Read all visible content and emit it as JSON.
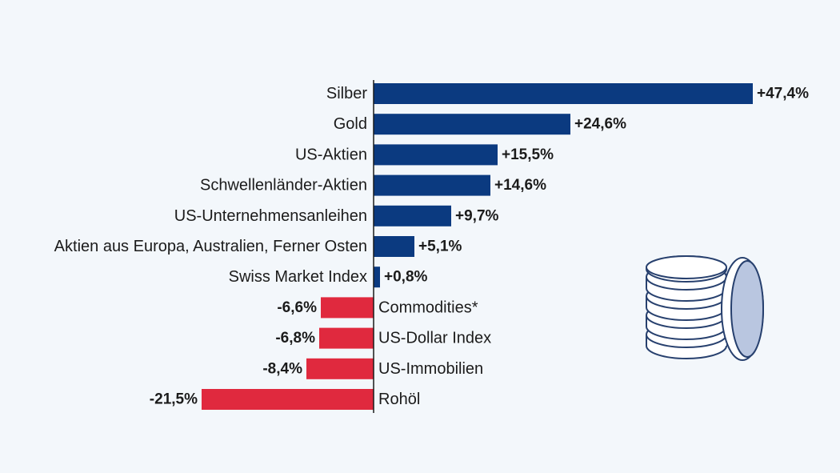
{
  "chart_data": {
    "type": "bar",
    "orientation": "horizontal",
    "categories": [
      "Silber",
      "Gold",
      "US-Aktien",
      "Schwellenländer-Aktien",
      "US-Unternehmensanleihen",
      "Aktien aus Europa, Australien, Ferner Osten",
      "Swiss Market Index",
      "Commodities*",
      "US-Dollar Index",
      "US-Immobilien",
      "Rohöl"
    ],
    "values": [
      47.4,
      24.6,
      15.5,
      14.6,
      9.7,
      5.1,
      0.8,
      -6.6,
      -6.8,
      -8.4,
      -21.5
    ],
    "value_labels": [
      "+47,4%",
      "+24,6%",
      "+15,5%",
      "+14,6%",
      "+9,7%",
      "+5,1%",
      "+0,8%",
      "-6,6%",
      "-6,8%",
      "-8,4%",
      "-21,5%"
    ],
    "title": "",
    "xlabel": "",
    "ylabel": "",
    "xlim": [
      -21.5,
      47.4
    ],
    "grid": false,
    "legend": "none",
    "colors": {
      "positive": "#0b3a80",
      "negative": "#e0293e"
    }
  },
  "decoration": {
    "icon": "coin-stack-icon"
  }
}
